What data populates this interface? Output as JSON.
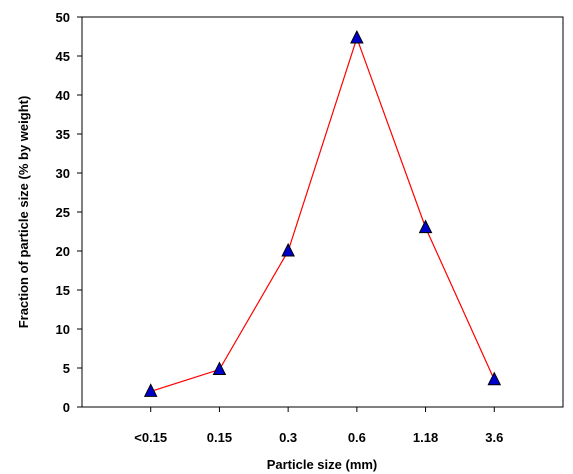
{
  "chart_data": {
    "type": "line",
    "categories": [
      "<0.15",
      "0.15",
      "0.3",
      "0.6",
      "1.18",
      "3.6"
    ],
    "series": [
      {
        "values": [
          2.0,
          4.8,
          20.0,
          47.3,
          23.0,
          3.5
        ],
        "line_color": "#ff0000",
        "marker": "triangle",
        "marker_color": "#0000cc"
      }
    ],
    "title": "",
    "xlabel": "Particle size (mm)",
    "ylabel": "Fraction of particle size (% by weight)",
    "ylim": [
      0,
      50
    ],
    "yticks": [
      0,
      5,
      10,
      15,
      20,
      25,
      30,
      35,
      40,
      45,
      50
    ],
    "grid": false,
    "legend": "none"
  }
}
